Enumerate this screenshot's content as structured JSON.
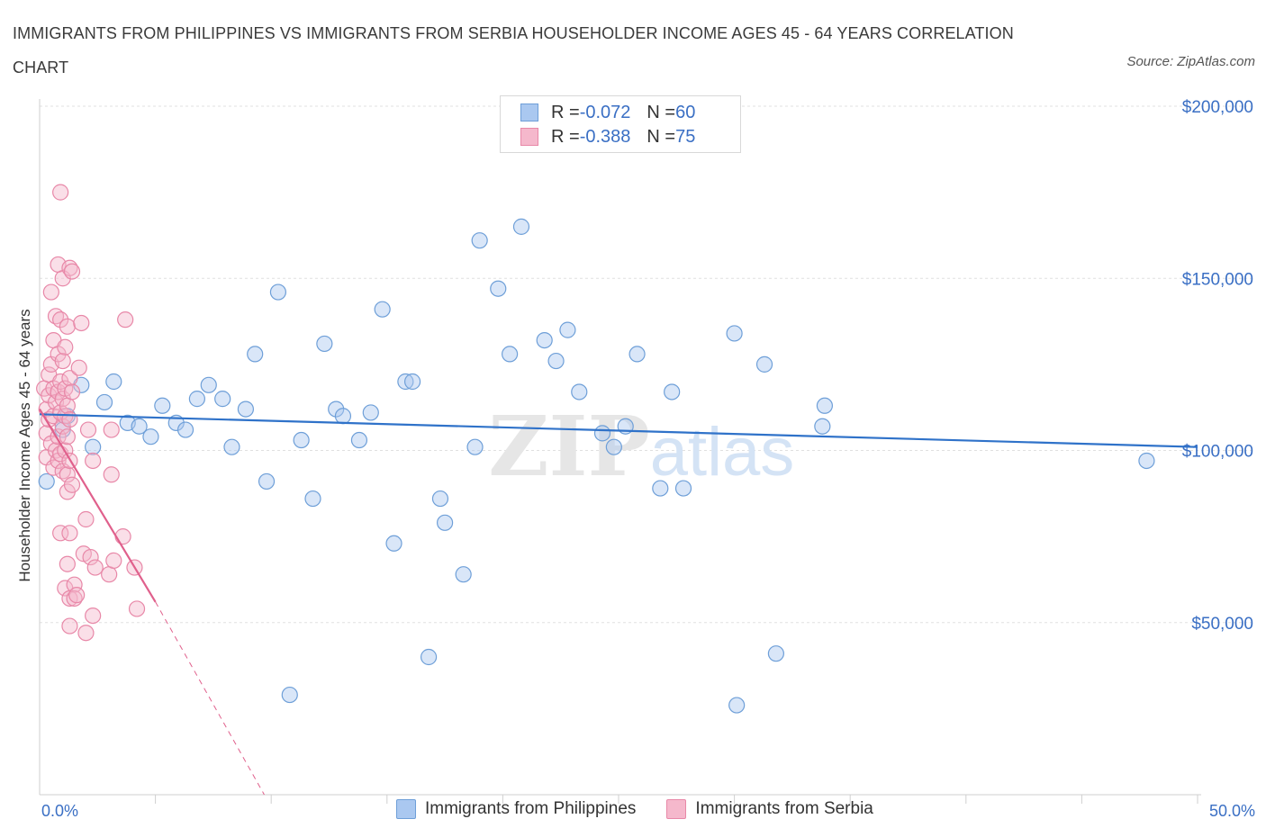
{
  "title": "IMMIGRANTS FROM PHILIPPINES VS IMMIGRANTS FROM SERBIA HOUSEHOLDER INCOME AGES 45 - 64 YEARS CORRELATION CHART",
  "source": "Source: ZipAtlas.com",
  "watermark": {
    "zip": "ZIP",
    "atlas": "atlas"
  },
  "legend_top": [
    {
      "r_label": "R = ",
      "r_value": "-0.072",
      "n_label": "N = ",
      "n_value": "60"
    },
    {
      "r_label": "R = ",
      "r_value": "-0.388",
      "n_label": "N = ",
      "n_value": "75"
    }
  ],
  "colors": {
    "philippines_fill": "#aac8f0",
    "philippines_stroke": "#6e9fd8",
    "philippines_line": "#2f72c9",
    "serbia_fill": "#f5b8cc",
    "serbia_stroke": "#e888a8",
    "serbia_line": "#e0608c",
    "tick_label": "#3a6fc4",
    "grid": "#e0e0e0"
  },
  "chart_data": {
    "type": "scatter",
    "ylabel": "Householder Income Ages 45 - 64 years",
    "xlim": [
      0,
      50
    ],
    "ylim": [
      0,
      200000
    ],
    "y_ticks": [
      {
        "value": 50000,
        "label": "$50,000"
      },
      {
        "value": 100000,
        "label": "$100,000"
      },
      {
        "value": 150000,
        "label": "$150,000"
      },
      {
        "value": 200000,
        "label": "$200,000"
      }
    ],
    "x_tick_labels": [
      {
        "value": 0,
        "label": "0.0%"
      },
      {
        "value": 50,
        "label": "50.0%"
      }
    ],
    "grid": "horizontal dashed",
    "series": [
      {
        "name": "Immigrants from Philippines",
        "points": [
          [
            0.3,
            91000
          ],
          [
            1.0,
            106000
          ],
          [
            1.2,
            110000
          ],
          [
            1.8,
            119000
          ],
          [
            2.3,
            101000
          ],
          [
            2.8,
            114000
          ],
          [
            3.2,
            120000
          ],
          [
            3.8,
            108000
          ],
          [
            4.3,
            107000
          ],
          [
            4.8,
            104000
          ],
          [
            5.3,
            113000
          ],
          [
            5.9,
            108000
          ],
          [
            6.3,
            106000
          ],
          [
            6.8,
            115000
          ],
          [
            7.3,
            119000
          ],
          [
            7.9,
            115000
          ],
          [
            8.3,
            101000
          ],
          [
            8.9,
            112000
          ],
          [
            9.3,
            128000
          ],
          [
            9.8,
            91000
          ],
          [
            10.3,
            146000
          ],
          [
            10.8,
            29000
          ],
          [
            11.3,
            103000
          ],
          [
            11.8,
            86000
          ],
          [
            12.3,
            131000
          ],
          [
            12.8,
            112000
          ],
          [
            13.1,
            110000
          ],
          [
            13.8,
            103000
          ],
          [
            14.3,
            111000
          ],
          [
            14.8,
            141000
          ],
          [
            15.3,
            73000
          ],
          [
            15.8,
            120000
          ],
          [
            16.1,
            120000
          ],
          [
            16.8,
            40000
          ],
          [
            17.3,
            86000
          ],
          [
            17.5,
            79000
          ],
          [
            18.3,
            64000
          ],
          [
            18.8,
            101000
          ],
          [
            19.0,
            161000
          ],
          [
            19.8,
            147000
          ],
          [
            20.3,
            128000
          ],
          [
            20.8,
            165000
          ],
          [
            21.8,
            132000
          ],
          [
            22.3,
            126000
          ],
          [
            22.8,
            135000
          ],
          [
            23.3,
            117000
          ],
          [
            24.3,
            105000
          ],
          [
            24.8,
            101000
          ],
          [
            25.3,
            107000
          ],
          [
            25.8,
            128000
          ],
          [
            26.8,
            89000
          ],
          [
            27.3,
            117000
          ],
          [
            27.8,
            89000
          ],
          [
            30.0,
            134000
          ],
          [
            30.1,
            26000
          ],
          [
            31.3,
            125000
          ],
          [
            31.8,
            41000
          ],
          [
            33.8,
            107000
          ],
          [
            33.9,
            113000
          ],
          [
            47.8,
            97000
          ]
        ],
        "trend": {
          "x": [
            0,
            50
          ],
          "y": [
            110500,
            101000
          ],
          "style": "solid"
        }
      },
      {
        "name": "Immigrants from Serbia",
        "points": [
          [
            0.2,
            118000
          ],
          [
            0.3,
            112000
          ],
          [
            0.3,
            105000
          ],
          [
            0.3,
            98000
          ],
          [
            0.4,
            122000
          ],
          [
            0.4,
            116000
          ],
          [
            0.4,
            109000
          ],
          [
            0.5,
            146000
          ],
          [
            0.5,
            125000
          ],
          [
            0.5,
            102000
          ],
          [
            0.6,
            132000
          ],
          [
            0.6,
            118000
          ],
          [
            0.6,
            110000
          ],
          [
            0.6,
            95000
          ],
          [
            0.7,
            139000
          ],
          [
            0.7,
            114000
          ],
          [
            0.7,
            100000
          ],
          [
            0.8,
            154000
          ],
          [
            0.8,
            128000
          ],
          [
            0.8,
            117000
          ],
          [
            0.8,
            104000
          ],
          [
            0.8,
            97000
          ],
          [
            0.9,
            175000
          ],
          [
            0.9,
            138000
          ],
          [
            0.9,
            120000
          ],
          [
            0.9,
            111000
          ],
          [
            0.9,
            99000
          ],
          [
            0.9,
            76000
          ],
          [
            1.0,
            150000
          ],
          [
            1.0,
            126000
          ],
          [
            1.0,
            115000
          ],
          [
            1.0,
            107000
          ],
          [
            1.0,
            94000
          ],
          [
            1.1,
            130000
          ],
          [
            1.1,
            118000
          ],
          [
            1.1,
            110000
          ],
          [
            1.1,
            100000
          ],
          [
            1.1,
            60000
          ],
          [
            1.2,
            136000
          ],
          [
            1.2,
            113000
          ],
          [
            1.2,
            104000
          ],
          [
            1.2,
            93000
          ],
          [
            1.2,
            88000
          ],
          [
            1.2,
            67000
          ],
          [
            1.3,
            153000
          ],
          [
            1.3,
            121000
          ],
          [
            1.3,
            109000
          ],
          [
            1.3,
            97000
          ],
          [
            1.3,
            76000
          ],
          [
            1.3,
            57000
          ],
          [
            1.3,
            49000
          ],
          [
            1.4,
            152000
          ],
          [
            1.4,
            117000
          ],
          [
            1.4,
            90000
          ],
          [
            1.5,
            61000
          ],
          [
            1.5,
            57000
          ],
          [
            1.6,
            58000
          ],
          [
            1.7,
            124000
          ],
          [
            1.8,
            137000
          ],
          [
            1.9,
            70000
          ],
          [
            2.0,
            47000
          ],
          [
            2.0,
            80000
          ],
          [
            2.1,
            106000
          ],
          [
            2.2,
            69000
          ],
          [
            2.3,
            97000
          ],
          [
            2.3,
            52000
          ],
          [
            2.4,
            66000
          ],
          [
            3.0,
            64000
          ],
          [
            3.1,
            106000
          ],
          [
            3.1,
            93000
          ],
          [
            3.2,
            68000
          ],
          [
            3.6,
            75000
          ],
          [
            3.7,
            138000
          ],
          [
            4.1,
            66000
          ],
          [
            4.2,
            54000
          ]
        ],
        "trend": {
          "x": [
            0,
            5
          ],
          "y": [
            112000,
            56000
          ],
          "style": "solid",
          "extension": {
            "x": [
              5,
              9.7
            ],
            "y": [
              56000,
              0
            ],
            "style": "dashed"
          }
        }
      }
    ]
  }
}
